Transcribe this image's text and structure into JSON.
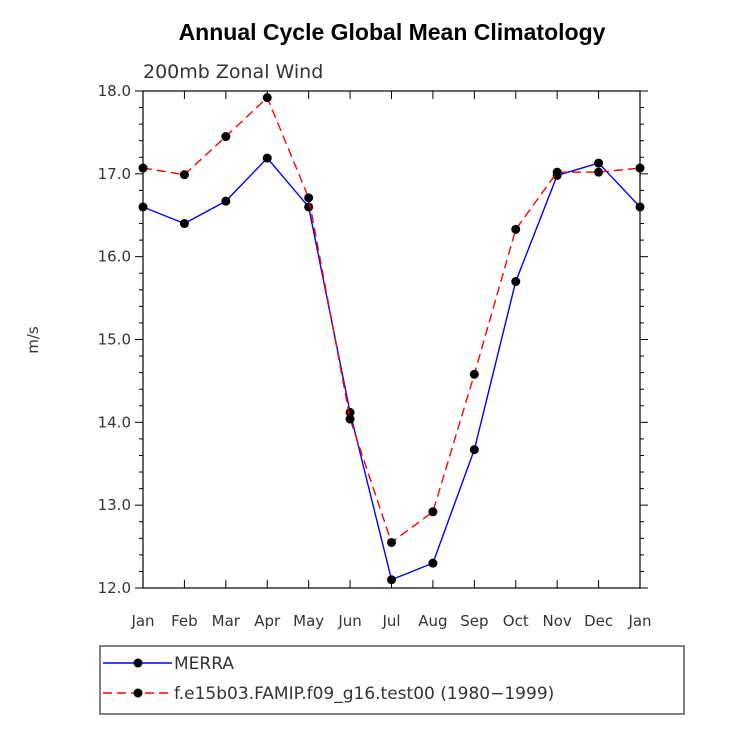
{
  "chart_data": {
    "type": "line",
    "title": "Annual Cycle Global Mean Climatology",
    "subtitle": "200mb Zonal Wind",
    "ylabel": "m/s",
    "xlabel": "",
    "categories": [
      "Jan",
      "Feb",
      "Mar",
      "Apr",
      "May",
      "Jun",
      "Jul",
      "Aug",
      "Sep",
      "Oct",
      "Nov",
      "Dec",
      "Jan"
    ],
    "ylim": [
      12.0,
      18.0
    ],
    "yticks": [
      "12.0",
      "13.0",
      "14.0",
      "15.0",
      "16.0",
      "17.0",
      "18.0"
    ],
    "series": [
      {
        "name": "MERRA",
        "color": "#0000ff",
        "dash": "solid",
        "values": [
          16.6,
          16.4,
          16.67,
          17.19,
          16.6,
          14.12,
          12.1,
          12.3,
          13.67,
          15.7,
          16.98,
          17.13,
          16.6
        ]
      },
      {
        "name": "f.e15b03.FAMIP.f09_g16.test00 (1980−1999)",
        "color": "#ff0000",
        "dash": "dashed",
        "values": [
          17.07,
          16.99,
          17.45,
          17.92,
          16.71,
          14.04,
          12.55,
          12.92,
          14.58,
          16.33,
          17.02,
          17.02,
          17.07
        ]
      }
    ],
    "grid": false,
    "legend_position": "bottom"
  }
}
